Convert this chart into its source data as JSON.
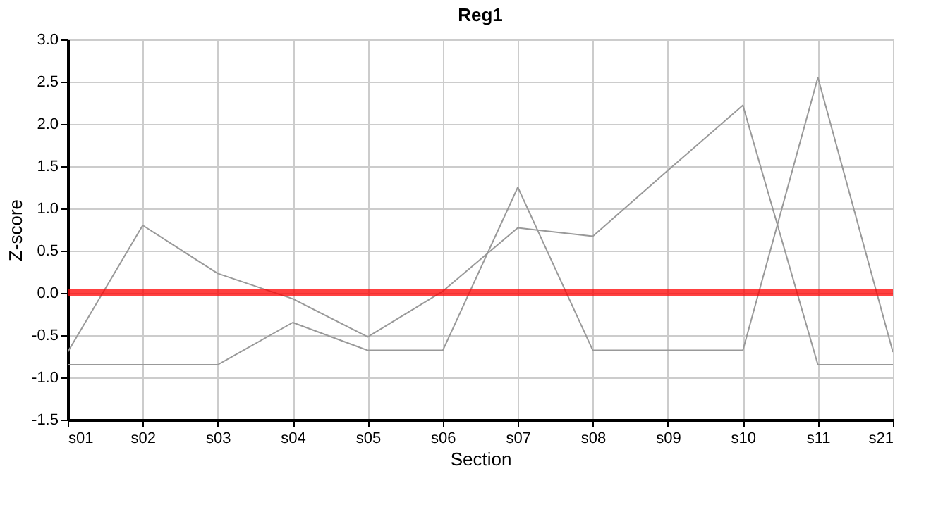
{
  "chart_data": {
    "type": "line",
    "title": "Reg1",
    "xlabel": "Section",
    "ylabel": "Z-score",
    "categories": [
      "s01",
      "s02",
      "s03",
      "s04",
      "s05",
      "s06",
      "s07",
      "s08",
      "s09",
      "s10",
      "s11",
      "s21"
    ],
    "series": [
      {
        "color": "#999999",
        "values": [
          -0.7,
          0.8,
          0.23,
          -0.07,
          -0.52,
          0.02,
          0.77,
          0.67,
          1.45,
          2.22,
          -0.85,
          -0.85
        ]
      },
      {
        "color": "#999999",
        "values": [
          -0.85,
          -0.85,
          -0.85,
          -0.35,
          -0.68,
          -0.68,
          1.25,
          -0.68,
          -0.68,
          -0.68,
          2.55,
          -0.7
        ]
      }
    ],
    "ylim": [
      -1.5,
      3.0
    ],
    "yticks": [
      {
        "value": -1.5,
        "label": "-1.5"
      },
      {
        "value": -1.0,
        "label": "-1.0"
      },
      {
        "value": -0.5,
        "label": "-0.5"
      },
      {
        "value": 0,
        "label": "0.0"
      },
      {
        "value": 0.5,
        "label": "0.5"
      },
      {
        "value": 1.0,
        "label": "1.0"
      },
      {
        "value": 1.5,
        "label": "1.5"
      },
      {
        "value": 2.0,
        "label": "2.0"
      },
      {
        "value": 2.5,
        "label": "2.5"
      },
      {
        "value": 3.0,
        "label": "3.0"
      }
    ],
    "ref_lines": [
      {
        "axis": "y",
        "value": 0,
        "color": "#ff0000",
        "line_style": "solid"
      }
    ],
    "grid": true,
    "marker": "none",
    "line_style": "solid"
  }
}
